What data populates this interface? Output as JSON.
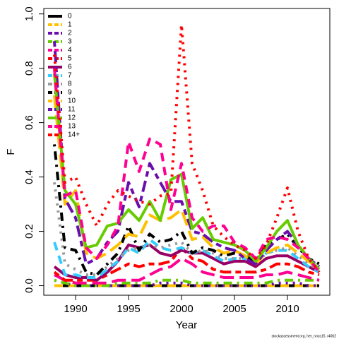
{
  "chart_data": {
    "type": "line",
    "xlabel": "Year",
    "ylabel": "F",
    "footer": "stockassessment.org, her_noss15, r4062",
    "x": [
      1988,
      1989,
      1990,
      1991,
      1992,
      1993,
      1994,
      1995,
      1996,
      1997,
      1998,
      1999,
      2000,
      2001,
      2002,
      2003,
      2004,
      2005,
      2006,
      2007,
      2008,
      2009,
      2010,
      2011,
      2012,
      2013
    ],
    "xlim": [
      1987,
      2014
    ],
    "xticks": [
      1990,
      1995,
      2000,
      2005,
      2010
    ],
    "ylim": [
      -0.035,
      1.02
    ],
    "yticks": [
      {
        "value": 0,
        "label": "0.0"
      },
      {
        "value": 0.2,
        "label": "0.2"
      },
      {
        "value": 0.4,
        "label": "0.4"
      },
      {
        "value": 0.6,
        "label": "0.6"
      },
      {
        "value": 0.8,
        "label": "0.8"
      },
      {
        "value": 1,
        "label": "1.0"
      }
    ],
    "legend": "top-left",
    "series": [
      {
        "name": "0",
        "color": "#000000",
        "dash": "solid",
        "values": [
          0,
          0,
          0,
          0,
          0,
          0,
          0,
          0,
          0,
          0,
          0,
          0,
          0,
          0,
          0,
          0,
          0,
          0,
          0,
          0,
          0,
          0,
          0,
          0,
          0,
          0
        ]
      },
      {
        "name": "1",
        "color": "#ffc000",
        "dash": "dashed",
        "values": [
          0,
          0,
          0,
          0,
          0,
          0,
          0,
          0,
          0,
          0,
          0,
          0,
          0,
          0,
          0,
          0,
          0,
          0,
          0,
          0,
          0,
          0,
          0,
          0,
          0,
          0
        ]
      },
      {
        "name": "2",
        "color": "#6a0dad",
        "dash": "dotted",
        "values": [
          0.02,
          0.01,
          0,
          0,
          0,
          0,
          0,
          0,
          0,
          0,
          0.01,
          0.01,
          0.01,
          0,
          0,
          0,
          0,
          0,
          0,
          0,
          0,
          0.01,
          0.01,
          0.01,
          0,
          0
        ]
      },
      {
        "name": "3",
        "color": "#66cc00",
        "dash": "dotdash",
        "values": [
          0.02,
          0.01,
          0,
          0,
          0,
          0,
          0.01,
          0.01,
          0.01,
          0.01,
          0.02,
          0.02,
          0.02,
          0.01,
          0.01,
          0.01,
          0.01,
          0.01,
          0.01,
          0.01,
          0.01,
          0.02,
          0.02,
          0.02,
          0.02,
          0.02
        ]
      },
      {
        "name": "4",
        "color": "#ff0090",
        "dash": "longdash",
        "values": [
          0.04,
          0.02,
          0.01,
          0.01,
          0.01,
          0.01,
          0.02,
          0.02,
          0.02,
          0.04,
          0.06,
          0.07,
          0.1,
          0.08,
          0.05,
          0.04,
          0.03,
          0.03,
          0.03,
          0.03,
          0.04,
          0.04,
          0.05,
          0.04,
          0.03,
          0.02
        ]
      },
      {
        "name": "5",
        "color": "#ff0000",
        "dash": "twodash",
        "values": [
          0.05,
          0.02,
          0.02,
          0.02,
          0.02,
          0.04,
          0.06,
          0.08,
          0.07,
          0.08,
          0.08,
          0.09,
          0.14,
          0.1,
          0.09,
          0.06,
          0.05,
          0.05,
          0.05,
          0.05,
          0.06,
          0.08,
          0.08,
          0.07,
          0.05,
          0.04
        ]
      },
      {
        "name": "6",
        "color": "#990066",
        "dash": "solid",
        "values": [
          0.07,
          0.04,
          0.03,
          0.03,
          0.02,
          0.05,
          0.09,
          0.15,
          0.14,
          0.15,
          0.12,
          0.11,
          0.13,
          0.12,
          0.12,
          0.1,
          0.08,
          0.09,
          0.09,
          0.07,
          0.1,
          0.11,
          0.11,
          0.09,
          0.07,
          0.05
        ]
      },
      {
        "name": "7",
        "color": "#33ccff",
        "dash": "dashed",
        "values": [
          0.16,
          0.04,
          0.04,
          0.03,
          0.03,
          0.06,
          0.09,
          0.14,
          0.12,
          0.17,
          0.14,
          0.13,
          0.14,
          0.12,
          0.13,
          0.11,
          0.09,
          0.1,
          0.1,
          0.08,
          0.12,
          0.13,
          0.13,
          0.1,
          0.07,
          0.05
        ]
      },
      {
        "name": "8",
        "color": "#999999",
        "dash": "dotted",
        "values": [
          0.38,
          0.08,
          0.06,
          0.04,
          0.04,
          0.07,
          0.1,
          0.13,
          0.14,
          0.15,
          0.14,
          0.15,
          0.16,
          0.12,
          0.13,
          0.12,
          0.1,
          0.1,
          0.1,
          0.08,
          0.12,
          0.13,
          0.14,
          0.11,
          0.08,
          0.06
        ]
      },
      {
        "name": "9",
        "color": "#000000",
        "dash": "dotdash",
        "values": [
          0.52,
          0.14,
          0.13,
          0.05,
          0.04,
          0.08,
          0.12,
          0.22,
          0.13,
          0.19,
          0.16,
          0.17,
          0.2,
          0.12,
          0.14,
          0.13,
          0.11,
          0.12,
          0.11,
          0.09,
          0.15,
          0.17,
          0.19,
          0.14,
          0.1,
          0.08
        ]
      },
      {
        "name": "10",
        "color": "#ffc000",
        "dash": "longdash",
        "values": [
          0.7,
          0.3,
          0.35,
          0.12,
          0.1,
          0.12,
          0.15,
          0.19,
          0.18,
          0.26,
          0.24,
          0.25,
          0.28,
          0.17,
          0.18,
          0.14,
          0.12,
          0.13,
          0.11,
          0.08,
          0.12,
          0.14,
          0.15,
          0.12,
          0.09,
          0.06
        ]
      },
      {
        "name": "11",
        "color": "#6a0dad",
        "dash": "twodash",
        "values": [
          0.9,
          0.32,
          0.25,
          0.08,
          0.1,
          0.16,
          0.2,
          0.38,
          0.29,
          0.45,
          0.38,
          0.31,
          0.31,
          0.2,
          0.19,
          0.16,
          0.14,
          0.13,
          0.1,
          0.08,
          0.13,
          0.17,
          0.2,
          0.15,
          0.1,
          0.07
        ]
      },
      {
        "name": "12",
        "color": "#66cc00",
        "dash": "solid",
        "values": [
          0.78,
          0.35,
          0.3,
          0.14,
          0.15,
          0.22,
          0.23,
          0.28,
          0.24,
          0.31,
          0.24,
          0.39,
          0.41,
          0.21,
          0.25,
          0.17,
          0.16,
          0.15,
          0.13,
          0.09,
          0.14,
          0.2,
          0.24,
          0.15,
          0.1,
          0.06
        ]
      },
      {
        "name": "13",
        "color": "#ff0090",
        "dash": "dashed",
        "values": [
          0.8,
          0.33,
          0.35,
          0.14,
          0.1,
          0.15,
          0.22,
          0.53,
          0.42,
          0.54,
          0.52,
          0.28,
          0.45,
          0.25,
          0.2,
          0.22,
          0.22,
          0.16,
          0.14,
          0.1,
          0.17,
          0.18,
          0.17,
          0.14,
          0.1,
          0.05
        ]
      },
      {
        "name": "14+",
        "color": "#ff0000",
        "dash": "dotted",
        "values": [
          0.85,
          0.38,
          0.4,
          0.3,
          0.22,
          0.3,
          0.35,
          0.33,
          0.31,
          0.3,
          0.33,
          0.34,
          0.96,
          0.45,
          0.35,
          0.22,
          0.18,
          0.15,
          0.13,
          0.1,
          0.15,
          0.25,
          0.36,
          0.2,
          0.1,
          0.05
        ]
      }
    ]
  }
}
